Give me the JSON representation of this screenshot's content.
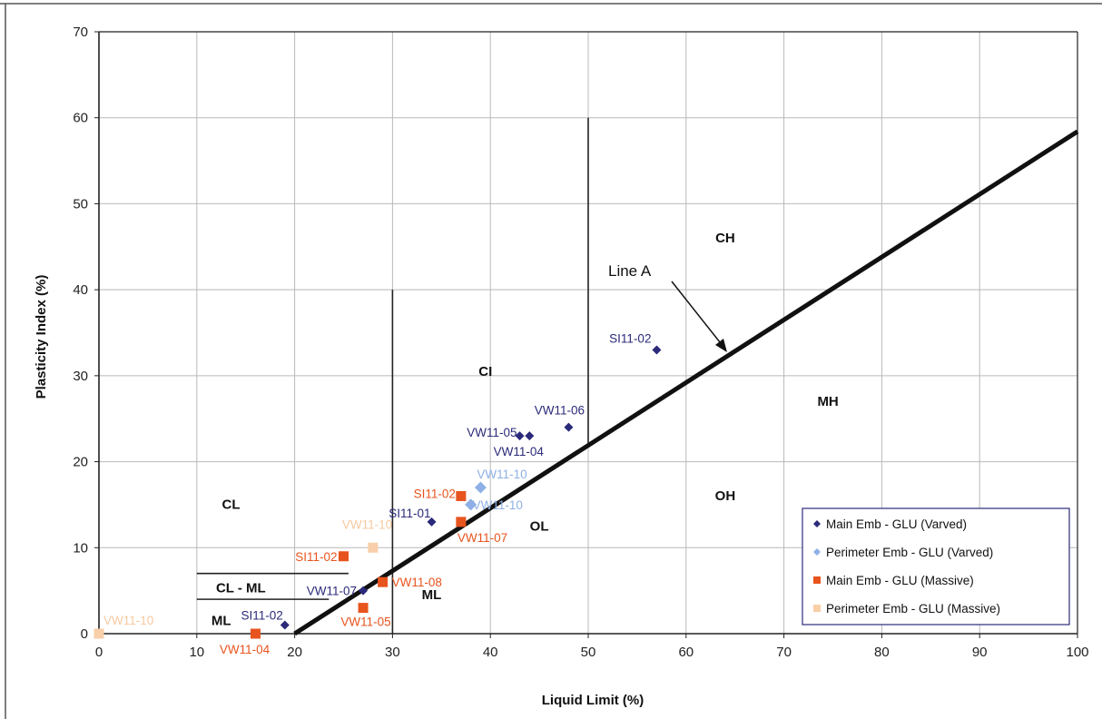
{
  "chart_data": {
    "type": "scatter",
    "xlabel": "Liquid Limit (%)",
    "ylabel": "Plasticity Index (%)",
    "xlim": [
      0,
      100
    ],
    "ylim": [
      0,
      70
    ],
    "x_ticks": [
      "0",
      "10",
      "20",
      "30",
      "40",
      "50",
      "60",
      "70",
      "80",
      "90",
      "100"
    ],
    "y_ticks": [
      "0",
      "10",
      "20",
      "30",
      "40",
      "50",
      "60",
      "70"
    ],
    "grid": true,
    "legend_position": "bottom-right",
    "series": [
      {
        "name": "Main Emb - GLU (Varved)",
        "marker": "diamond",
        "color": "#2b2a7a",
        "label_color": "#2b2a7a",
        "points": [
          {
            "x": 19,
            "y": 1,
            "label": "SI11-02"
          },
          {
            "x": 27,
            "y": 5,
            "label": "VW11-07"
          },
          {
            "x": 34,
            "y": 13,
            "label": "SI11-01"
          },
          {
            "x": 43,
            "y": 23,
            "label": "VW11-05"
          },
          {
            "x": 44,
            "y": 23,
            "label": "VW11-04"
          },
          {
            "x": 48,
            "y": 24,
            "label": "VW11-06"
          },
          {
            "x": 57,
            "y": 33,
            "label": "SI11-02"
          }
        ]
      },
      {
        "name": "Perimeter Emb - GLU (Varved)",
        "marker": "diamond",
        "color": "#8fb0e6",
        "label_color": "#8fb0e6",
        "points": [
          {
            "x": 39,
            "y": 17,
            "label": "VW11-10"
          },
          {
            "x": 38,
            "y": 15,
            "label": "VW11-10"
          }
        ]
      },
      {
        "name": "Main Emb - GLU (Massive)",
        "marker": "square",
        "color": "#e8541e",
        "label_color": "#e8541e",
        "points": [
          {
            "x": 16,
            "y": 0,
            "label": "VW11-04"
          },
          {
            "x": 25,
            "y": 9,
            "label": "SI11-02"
          },
          {
            "x": 27,
            "y": 3,
            "label": "VW11-05"
          },
          {
            "x": 29,
            "y": 6,
            "label": "VW11-08"
          },
          {
            "x": 37,
            "y": 13,
            "label": "VW11-07"
          },
          {
            "x": 37,
            "y": 16,
            "label": "SI11-02"
          }
        ]
      },
      {
        "name": "Perimeter Emb - GLU (Massive)",
        "marker": "square",
        "color": "#f8cfa8",
        "label_color": "#f6c9a0",
        "points": [
          {
            "x": 0,
            "y": 0,
            "label": "VW11-10"
          },
          {
            "x": 28,
            "y": 10,
            "label": "VW11-10"
          }
        ]
      }
    ],
    "line_a": {
      "label": "Line A",
      "points": [
        [
          20,
          0
        ],
        [
          100,
          58.4
        ]
      ]
    },
    "zone_boundaries": [
      {
        "from": [
          30,
          7.3
        ],
        "to": [
          30,
          40
        ]
      },
      {
        "from": [
          50,
          21.9
        ],
        "to": [
          50,
          60
        ]
      },
      {
        "from": [
          10,
          7
        ],
        "to": [
          25.5,
          7
        ]
      },
      {
        "from": [
          10,
          4
        ],
        "to": [
          23.5,
          4
        ]
      },
      {
        "from": [
          30,
          0
        ],
        "to": [
          30,
          7.3
        ]
      }
    ],
    "zone_labels": [
      {
        "text": "CL",
        "x": 13.5,
        "y": 14.5
      },
      {
        "text": "CL - ML",
        "x": 14.5,
        "y": 4.8
      },
      {
        "text": "ML",
        "x": 12.5,
        "y": 1
      },
      {
        "text": "ML",
        "x": 34,
        "y": 4
      },
      {
        "text": "CI",
        "x": 39.5,
        "y": 30
      },
      {
        "text": "OL",
        "x": 45,
        "y": 12
      },
      {
        "text": "CH",
        "x": 64,
        "y": 45.5
      },
      {
        "text": "MH",
        "x": 74.5,
        "y": 26.5
      },
      {
        "text": "OH",
        "x": 64,
        "y": 15.5
      }
    ]
  }
}
